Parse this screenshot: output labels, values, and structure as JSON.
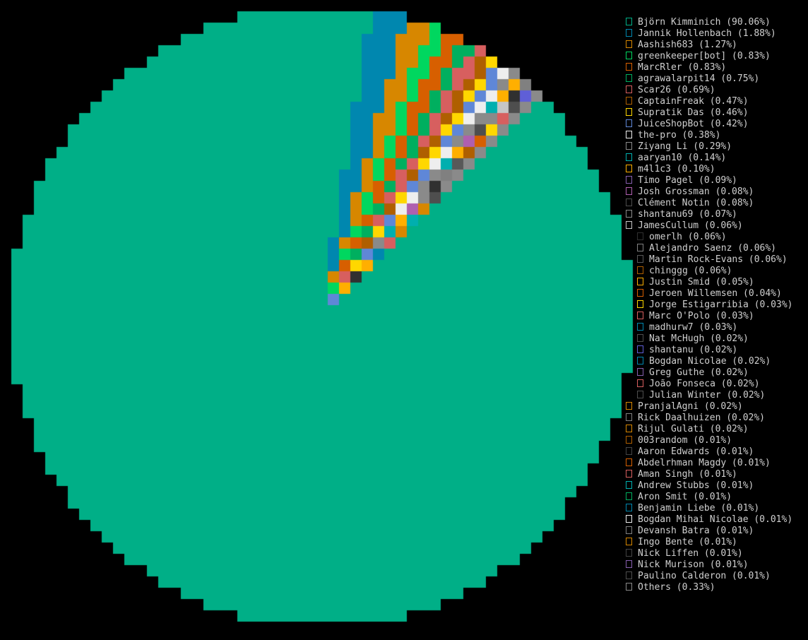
{
  "chart_data": {
    "type": "pie",
    "title": "",
    "legend_position": "right",
    "slices": [
      {
        "label": "Björn Kimminich (90.06%)",
        "value": 90.06,
        "color": "#00af87",
        "indent": false
      },
      {
        "label": "Jannik Hollenbach (1.88%)",
        "value": 1.88,
        "color": "#0087af",
        "indent": false
      },
      {
        "label": "Aashish683 (1.27%)",
        "value": 1.27,
        "color": "#d78700",
        "indent": false
      },
      {
        "label": "greenkeeper[bot] (0.83%)",
        "value": 0.83,
        "color": "#00d75f",
        "indent": false
      },
      {
        "label": "MarcRler (0.83%)",
        "value": 0.83,
        "color": "#d75f00",
        "indent": false
      },
      {
        "label": "agrawalarpit14 (0.75%)",
        "value": 0.75,
        "color": "#00af5f",
        "indent": false
      },
      {
        "label": "Scar26 (0.69%)",
        "value": 0.69,
        "color": "#d75f5f",
        "indent": false
      },
      {
        "label": "CaptainFreak (0.47%)",
        "value": 0.47,
        "color": "#af5f00",
        "indent": false
      },
      {
        "label": "Supratik Das (0.46%)",
        "value": 0.46,
        "color": "#ffd700",
        "indent": false
      },
      {
        "label": "JuiceShopBot (0.42%)",
        "value": 0.42,
        "color": "#5f87d7",
        "indent": false
      },
      {
        "label": "the-pro (0.38%)",
        "value": 0.38,
        "color": "#eeeeee",
        "indent": false
      },
      {
        "label": "Ziyang Li (0.29%)",
        "value": 0.29,
        "color": "#8a8a8a",
        "indent": false
      },
      {
        "label": "aaryan10 (0.14%)",
        "value": 0.14,
        "color": "#00afaf",
        "indent": false
      },
      {
        "label": "m4l1c3 (0.10%)",
        "value": 0.1,
        "color": "#ffaf00",
        "indent": false
      },
      {
        "label": "Timo Pagel (0.09%)",
        "value": 0.09,
        "color": "#875faf",
        "indent": false
      },
      {
        "label": "Josh Grossman (0.08%)",
        "value": 0.08,
        "color": "#af5faf",
        "indent": false
      },
      {
        "label": "Clément Notin (0.08%)",
        "value": 0.08,
        "color": "#4e4e4e",
        "indent": false
      },
      {
        "label": "shantanu69 (0.07%)",
        "value": 0.07,
        "color": "#8a8a8a",
        "indent": false
      },
      {
        "label": "JamesCullum (0.06%)",
        "value": 0.06,
        "color": "#c6c6c6",
        "indent": false
      },
      {
        "label": "omerlh (0.06%)",
        "value": 0.06,
        "color": "#303030",
        "indent": true
      },
      {
        "label": "Alejandro Saenz (0.06%)",
        "value": 0.06,
        "color": "#808080",
        "indent": true
      },
      {
        "label": "Martin Rock-Evans (0.06%)",
        "value": 0.06,
        "color": "#585858",
        "indent": true
      },
      {
        "label": "chinggg (0.06%)",
        "value": 0.06,
        "color": "#af5f00",
        "indent": true
      },
      {
        "label": "Justin Smid (0.05%)",
        "value": 0.05,
        "color": "#ffaf00",
        "indent": true
      },
      {
        "label": "Jeroen Willemsen (0.04%)",
        "value": 0.04,
        "color": "#d75f00",
        "indent": true
      },
      {
        "label": "Jorge Estigarribia (0.03%)",
        "value": 0.03,
        "color": "#ffd700",
        "indent": true
      },
      {
        "label": "Marc O'Polo (0.03%)",
        "value": 0.03,
        "color": "#d75f5f",
        "indent": true
      },
      {
        "label": "madhurw7 (0.03%)",
        "value": 0.03,
        "color": "#0087af",
        "indent": true
      },
      {
        "label": "Nat McHugh (0.02%)",
        "value": 0.02,
        "color": "#4e4e4e",
        "indent": true
      },
      {
        "label": "shantanu (0.02%)",
        "value": 0.02,
        "color": "#5f5fd7",
        "indent": true
      },
      {
        "label": "Bogdan Nicolae (0.02%)",
        "value": 0.02,
        "color": "#0087af",
        "indent": true
      },
      {
        "label": "Greg Guthe (0.02%)",
        "value": 0.02,
        "color": "#875faf",
        "indent": true
      },
      {
        "label": "João Fonseca (0.02%)",
        "value": 0.02,
        "color": "#d75f5f",
        "indent": true
      },
      {
        "label": "Julian Winter (0.02%)",
        "value": 0.02,
        "color": "#4e4e4e",
        "indent": true
      },
      {
        "label": "PranjalAgni (0.02%)",
        "value": 0.02,
        "color": "#d78700",
        "indent": false
      },
      {
        "label": "Rick Daalhuizen (0.02%)",
        "value": 0.02,
        "color": "#808080",
        "indent": false
      },
      {
        "label": "Rijul Gulati (0.02%)",
        "value": 0.02,
        "color": "#d78700",
        "indent": false
      },
      {
        "label": "003random (0.01%)",
        "value": 0.01,
        "color": "#af5f00",
        "indent": false
      },
      {
        "label": "Aaron Edwards (0.01%)",
        "value": 0.01,
        "color": "#444444",
        "indent": false
      },
      {
        "label": "Abdelrhman Magdy (0.01%)",
        "value": 0.01,
        "color": "#d75f00",
        "indent": false
      },
      {
        "label": "Aman Singh (0.01%)",
        "value": 0.01,
        "color": "#d75f5f",
        "indent": false
      },
      {
        "label": "Andrew Stubbs (0.01%)",
        "value": 0.01,
        "color": "#00afaf",
        "indent": false
      },
      {
        "label": "Aron Smit (0.01%)",
        "value": 0.01,
        "color": "#00af5f",
        "indent": false
      },
      {
        "label": "Benjamin Liebe (0.01%)",
        "value": 0.01,
        "color": "#0087af",
        "indent": false
      },
      {
        "label": "Bogdan Mihai Nicolae (0.01%)",
        "value": 0.01,
        "color": "#eeeeee",
        "indent": false
      },
      {
        "label": "Devansh Batra (0.01%)",
        "value": 0.01,
        "color": "#808080",
        "indent": false
      },
      {
        "label": "Ingo Bente (0.01%)",
        "value": 0.01,
        "color": "#d78700",
        "indent": false
      },
      {
        "label": "Nick Liffen (0.01%)",
        "value": 0.01,
        "color": "#444444",
        "indent": false
      },
      {
        "label": "Nick Murison (0.01%)",
        "value": 0.01,
        "color": "#875faf",
        "indent": false
      },
      {
        "label": "Paulino Calderon (0.01%)",
        "value": 0.01,
        "color": "#4e4e4e",
        "indent": false
      },
      {
        "label": "Others (0.33%)",
        "value": 0.33,
        "color": "#8a8a8a",
        "indent": false
      }
    ]
  }
}
